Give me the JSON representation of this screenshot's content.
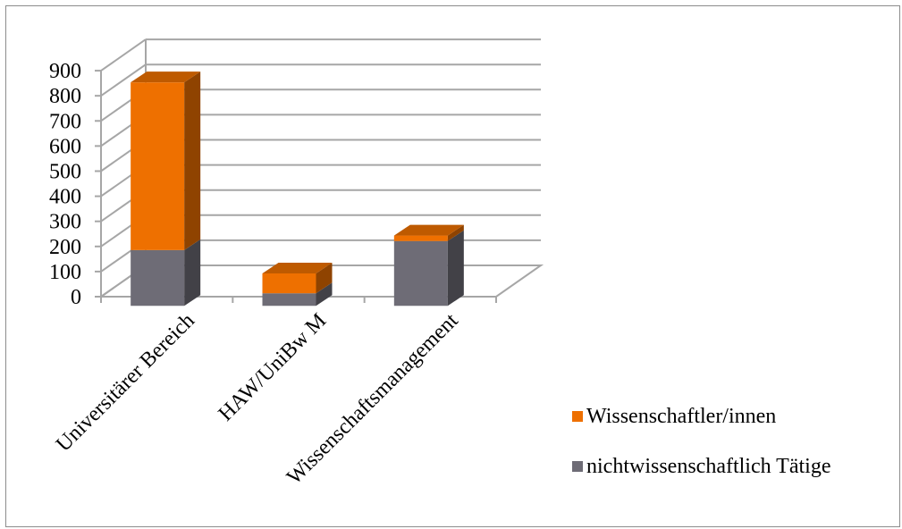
{
  "chart_data": {
    "type": "bar",
    "stacked": true,
    "three_d": true,
    "title": "",
    "xlabel": "",
    "ylabel": "",
    "categories": [
      "Universitärer Bereich",
      "HAW/UniBw M",
      "Wissenschaftsmanagement"
    ],
    "series": [
      {
        "name": "nichtwissenschaftlich Tätige",
        "values": [
          222,
          50,
          258
        ],
        "color": "#6e6c76"
      },
      {
        "name": "Wissenschaftler/innen",
        "values": [
          668,
          79,
          22
        ],
        "color": "#ee7000"
      }
    ],
    "ylim": [
      0,
      900
    ],
    "yticks": [
      "0",
      "100",
      "200",
      "300",
      "400",
      "500",
      "600",
      "700",
      "800",
      "900"
    ],
    "grid": true,
    "legend_position": "right-bottom",
    "legend_order": [
      "Wissenschaftler/innen",
      "nichtwissenschaftlich Tätige"
    ]
  }
}
